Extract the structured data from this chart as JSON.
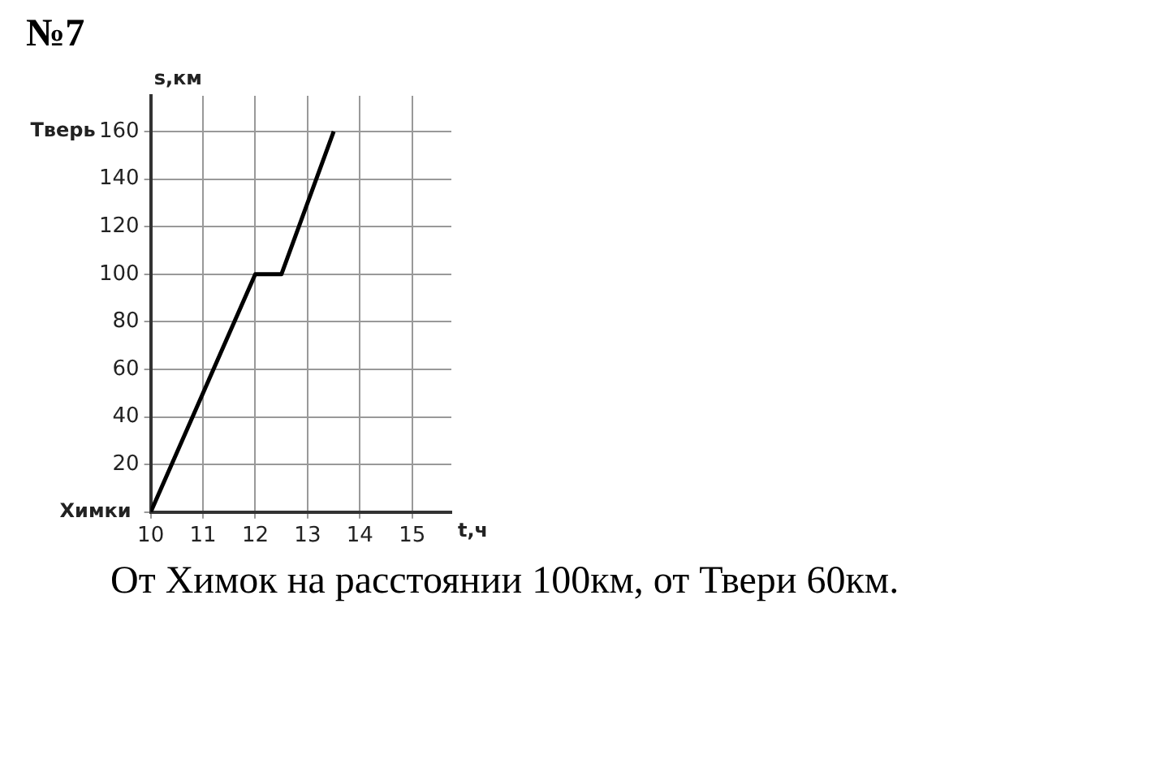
{
  "chart_data": {
    "type": "line",
    "title": "№7",
    "xlabel": "t,ч",
    "ylabel": "s,км",
    "x": [
      10,
      12,
      12.5,
      13.5
    ],
    "series": [
      {
        "color": "#000000",
        "values": [
          0,
          100,
          100,
          160
        ]
      }
    ],
    "xlim": [
      10,
      15.75
    ],
    "xticks": [
      10,
      11,
      12,
      13,
      14,
      15
    ],
    "ylim": [
      0,
      175
    ],
    "yticks": [
      {
        "value": 0,
        "label": null
      },
      20,
      40,
      60,
      80,
      100,
      120,
      140,
      160
    ],
    "grid": true,
    "marker": "none",
    "line_style": "solid",
    "legend": false,
    "annotations": [
      "Химки",
      "Тверь",
      "От Химок на расстоянии 100км, от Твери 60км."
    ]
  }
}
